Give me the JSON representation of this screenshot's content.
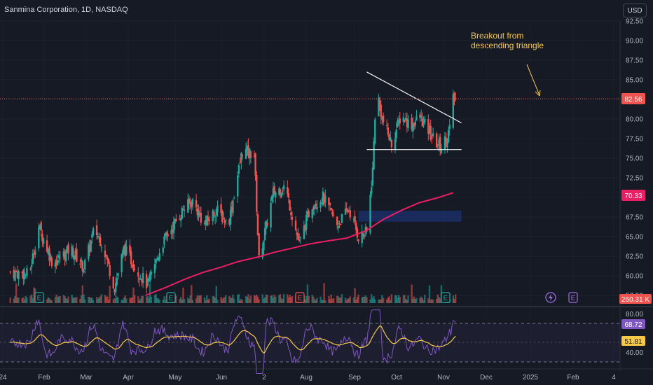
{
  "header": {
    "title": "Sanmina Corporation, 1D, NASDAQ"
  },
  "toolbar": {
    "currency": "USD"
  },
  "annotation": {
    "line1": "Breakout from",
    "line2": "descending triangle"
  },
  "colors": {
    "background": "#161a25",
    "up": "#26a69a",
    "down": "#ef5350",
    "ma": "#e91e63",
    "rsi": "#7e57c2",
    "rsi_ma": "#f7c948",
    "triangle": "#f2f2f2",
    "zone": "#1e3a8a"
  },
  "chart_data": [
    {
      "type": "candlestick",
      "series": [
        {
          "name": "price",
          "kind": "ohlc"
        },
        {
          "name": "200-day moving average",
          "kind": "line"
        }
      ],
      "yticks": [
        "92.50",
        "90.00",
        "87.50",
        "85.00",
        "82.50",
        "80.00",
        "77.50",
        "75.00",
        "72.50",
        "70.00",
        "67.50",
        "65.00",
        "62.50",
        "60.00",
        "57.50"
      ],
      "ylim": [
        57.5,
        92.5
      ],
      "xticks": [
        "24",
        "Feb",
        "Mar",
        "Apr",
        "May",
        "Jun",
        "2",
        "Aug",
        "Sep",
        "Oct",
        "Nov",
        "Dec",
        "2025",
        "Feb",
        "4"
      ],
      "last_price": "82.56",
      "ma_value": "70.33",
      "volume_value": "260.31 K",
      "ma_points": [
        [
          "Apr 28",
          57.5
        ],
        [
          "May 15",
          58.5
        ],
        [
          "Jun 01",
          59.6
        ],
        [
          "Jun 15",
          60.4
        ],
        [
          "Jul 01",
          61.1
        ],
        [
          "Jul 15",
          61.8
        ],
        [
          "Aug 01",
          62.4
        ],
        [
          "Aug 15",
          63.0
        ],
        [
          "Sep 01",
          63.6
        ],
        [
          "Sep 15",
          64.1
        ],
        [
          "Oct 01",
          64.5
        ],
        [
          "Oct 15",
          64.8
        ],
        [
          "Nov 01",
          65.8
        ],
        [
          "Nov 15",
          67.2
        ],
        [
          "Dec 01",
          68.4
        ],
        [
          "Dec 15",
          69.3
        ],
        [
          "Jan 01",
          70.0
        ],
        [
          "Jan 13",
          70.6
        ]
      ],
      "triangle": {
        "upper": [
          [
            "Nov 01",
            86.0
          ],
          [
            "Jan 20",
            79.5
          ]
        ],
        "lower": [
          [
            "Nov 01",
            76.1
          ],
          [
            "Jan 20",
            76.1
          ]
        ]
      },
      "demand_zone": {
        "from": "Oct 25",
        "to": "Jan 20",
        "low": 66.9,
        "high": 68.3
      }
    },
    {
      "type": "line",
      "series": [
        {
          "name": "RSI",
          "color": "#7e57c2"
        },
        {
          "name": "RSI-based MA",
          "color": "#f7c948"
        }
      ],
      "yticks": [
        "80.00",
        "40.00"
      ],
      "rsi_value": "68.72",
      "rsi_ma_value": "51.81",
      "levels": [
        70,
        50,
        30
      ]
    }
  ],
  "event_markers": [
    "E",
    "E",
    "E",
    "E",
    "E"
  ],
  "icons": [
    "flash-icon"
  ]
}
